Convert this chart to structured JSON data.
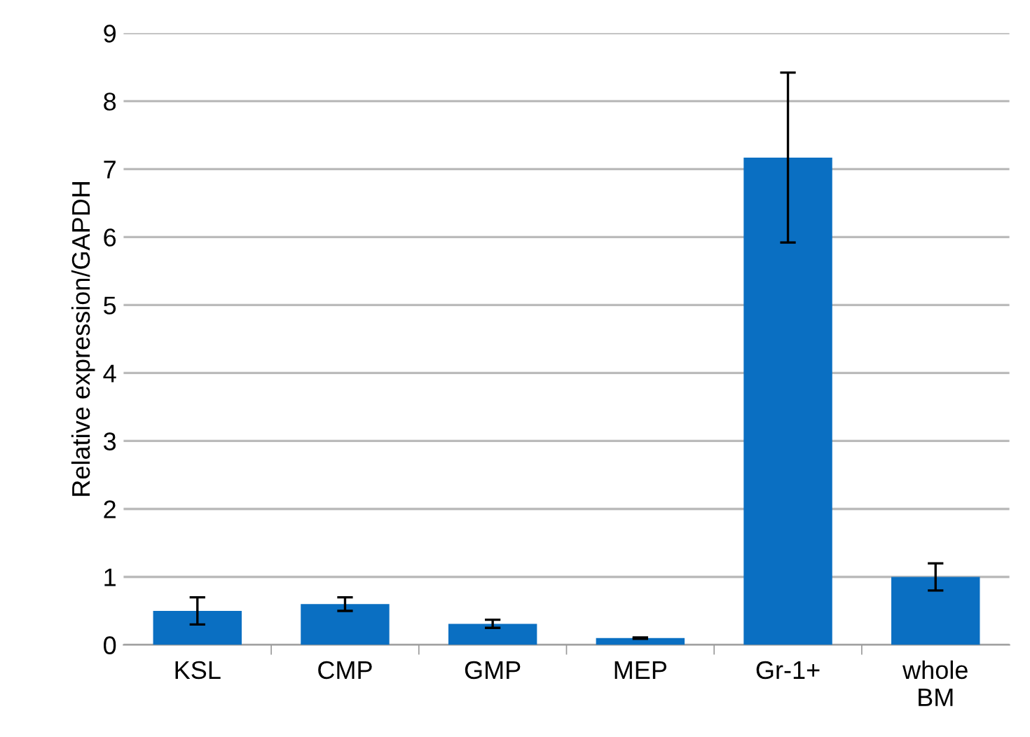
{
  "chart_data": {
    "type": "bar",
    "ylabel": "Relative expression/GAPDH",
    "categories": [
      "KSL",
      "CMP",
      "GMP",
      "MEP",
      "Gr-1+",
      "whole\nBM"
    ],
    "values": [
      0.5,
      0.6,
      0.31,
      0.1,
      7.17,
      1.0
    ],
    "errors": [
      0.2,
      0.1,
      0.06,
      0.01,
      1.25,
      0.2
    ],
    "color": "#0a6fc2",
    "ylim": [
      0,
      9
    ],
    "yticks": [
      0,
      1,
      2,
      3,
      4,
      5,
      6,
      7,
      8,
      9
    ],
    "grid": "y",
    "legend": false
  }
}
